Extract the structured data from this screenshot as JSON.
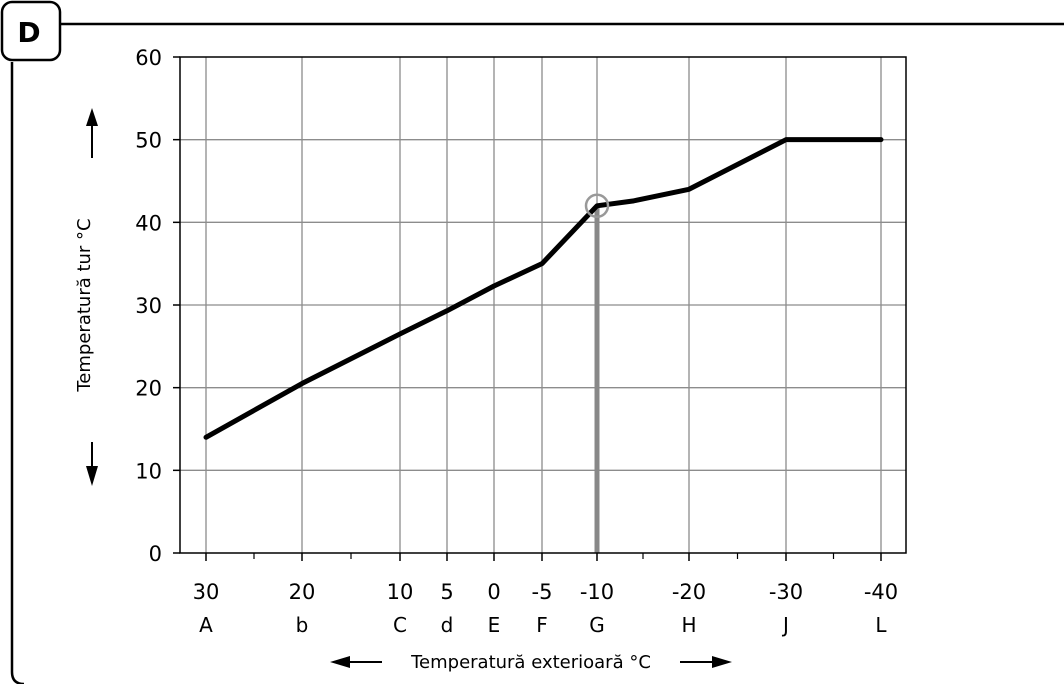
{
  "badge": "D",
  "chart_data": {
    "type": "line",
    "title": "",
    "xlabel": "Temperatură exterioară °C",
    "ylabel": "Temperatură tur °C",
    "ylim": [
      0,
      60
    ],
    "yticks": [
      0,
      10,
      20,
      30,
      40,
      50,
      60
    ],
    "xticks": [
      {
        "value": "30",
        "letter": "A"
      },
      {
        "value": "20",
        "letter": "b"
      },
      {
        "value": "10",
        "letter": "C"
      },
      {
        "value": "5",
        "letter": "d"
      },
      {
        "value": "0",
        "letter": "E"
      },
      {
        "value": "-5",
        "letter": "F"
      },
      {
        "value": "-10",
        "letter": "G"
      },
      {
        "value": "-20",
        "letter": "H"
      },
      {
        "value": "-30",
        "letter": "J"
      },
      {
        "value": "-40",
        "letter": "L"
      }
    ],
    "grid": true,
    "series": [
      {
        "color": "#000000",
        "points": [
          {
            "x": 30,
            "y": 14
          },
          {
            "x": 20,
            "y": 20.5
          },
          {
            "x": 10,
            "y": 26.5
          },
          {
            "x": 5,
            "y": 29.3
          },
          {
            "x": 0,
            "y": 32.3
          },
          {
            "x": -5,
            "y": 35
          },
          {
            "x": -10,
            "y": 42
          },
          {
            "x": -14,
            "y": 42.6
          },
          {
            "x": -20,
            "y": 44
          },
          {
            "x": -30,
            "y": 50
          },
          {
            "x": -40,
            "y": 50
          }
        ]
      }
    ],
    "marker": {
      "x": -10,
      "y": 42,
      "color": "#999999"
    },
    "marker_line_color": "#888888"
  }
}
